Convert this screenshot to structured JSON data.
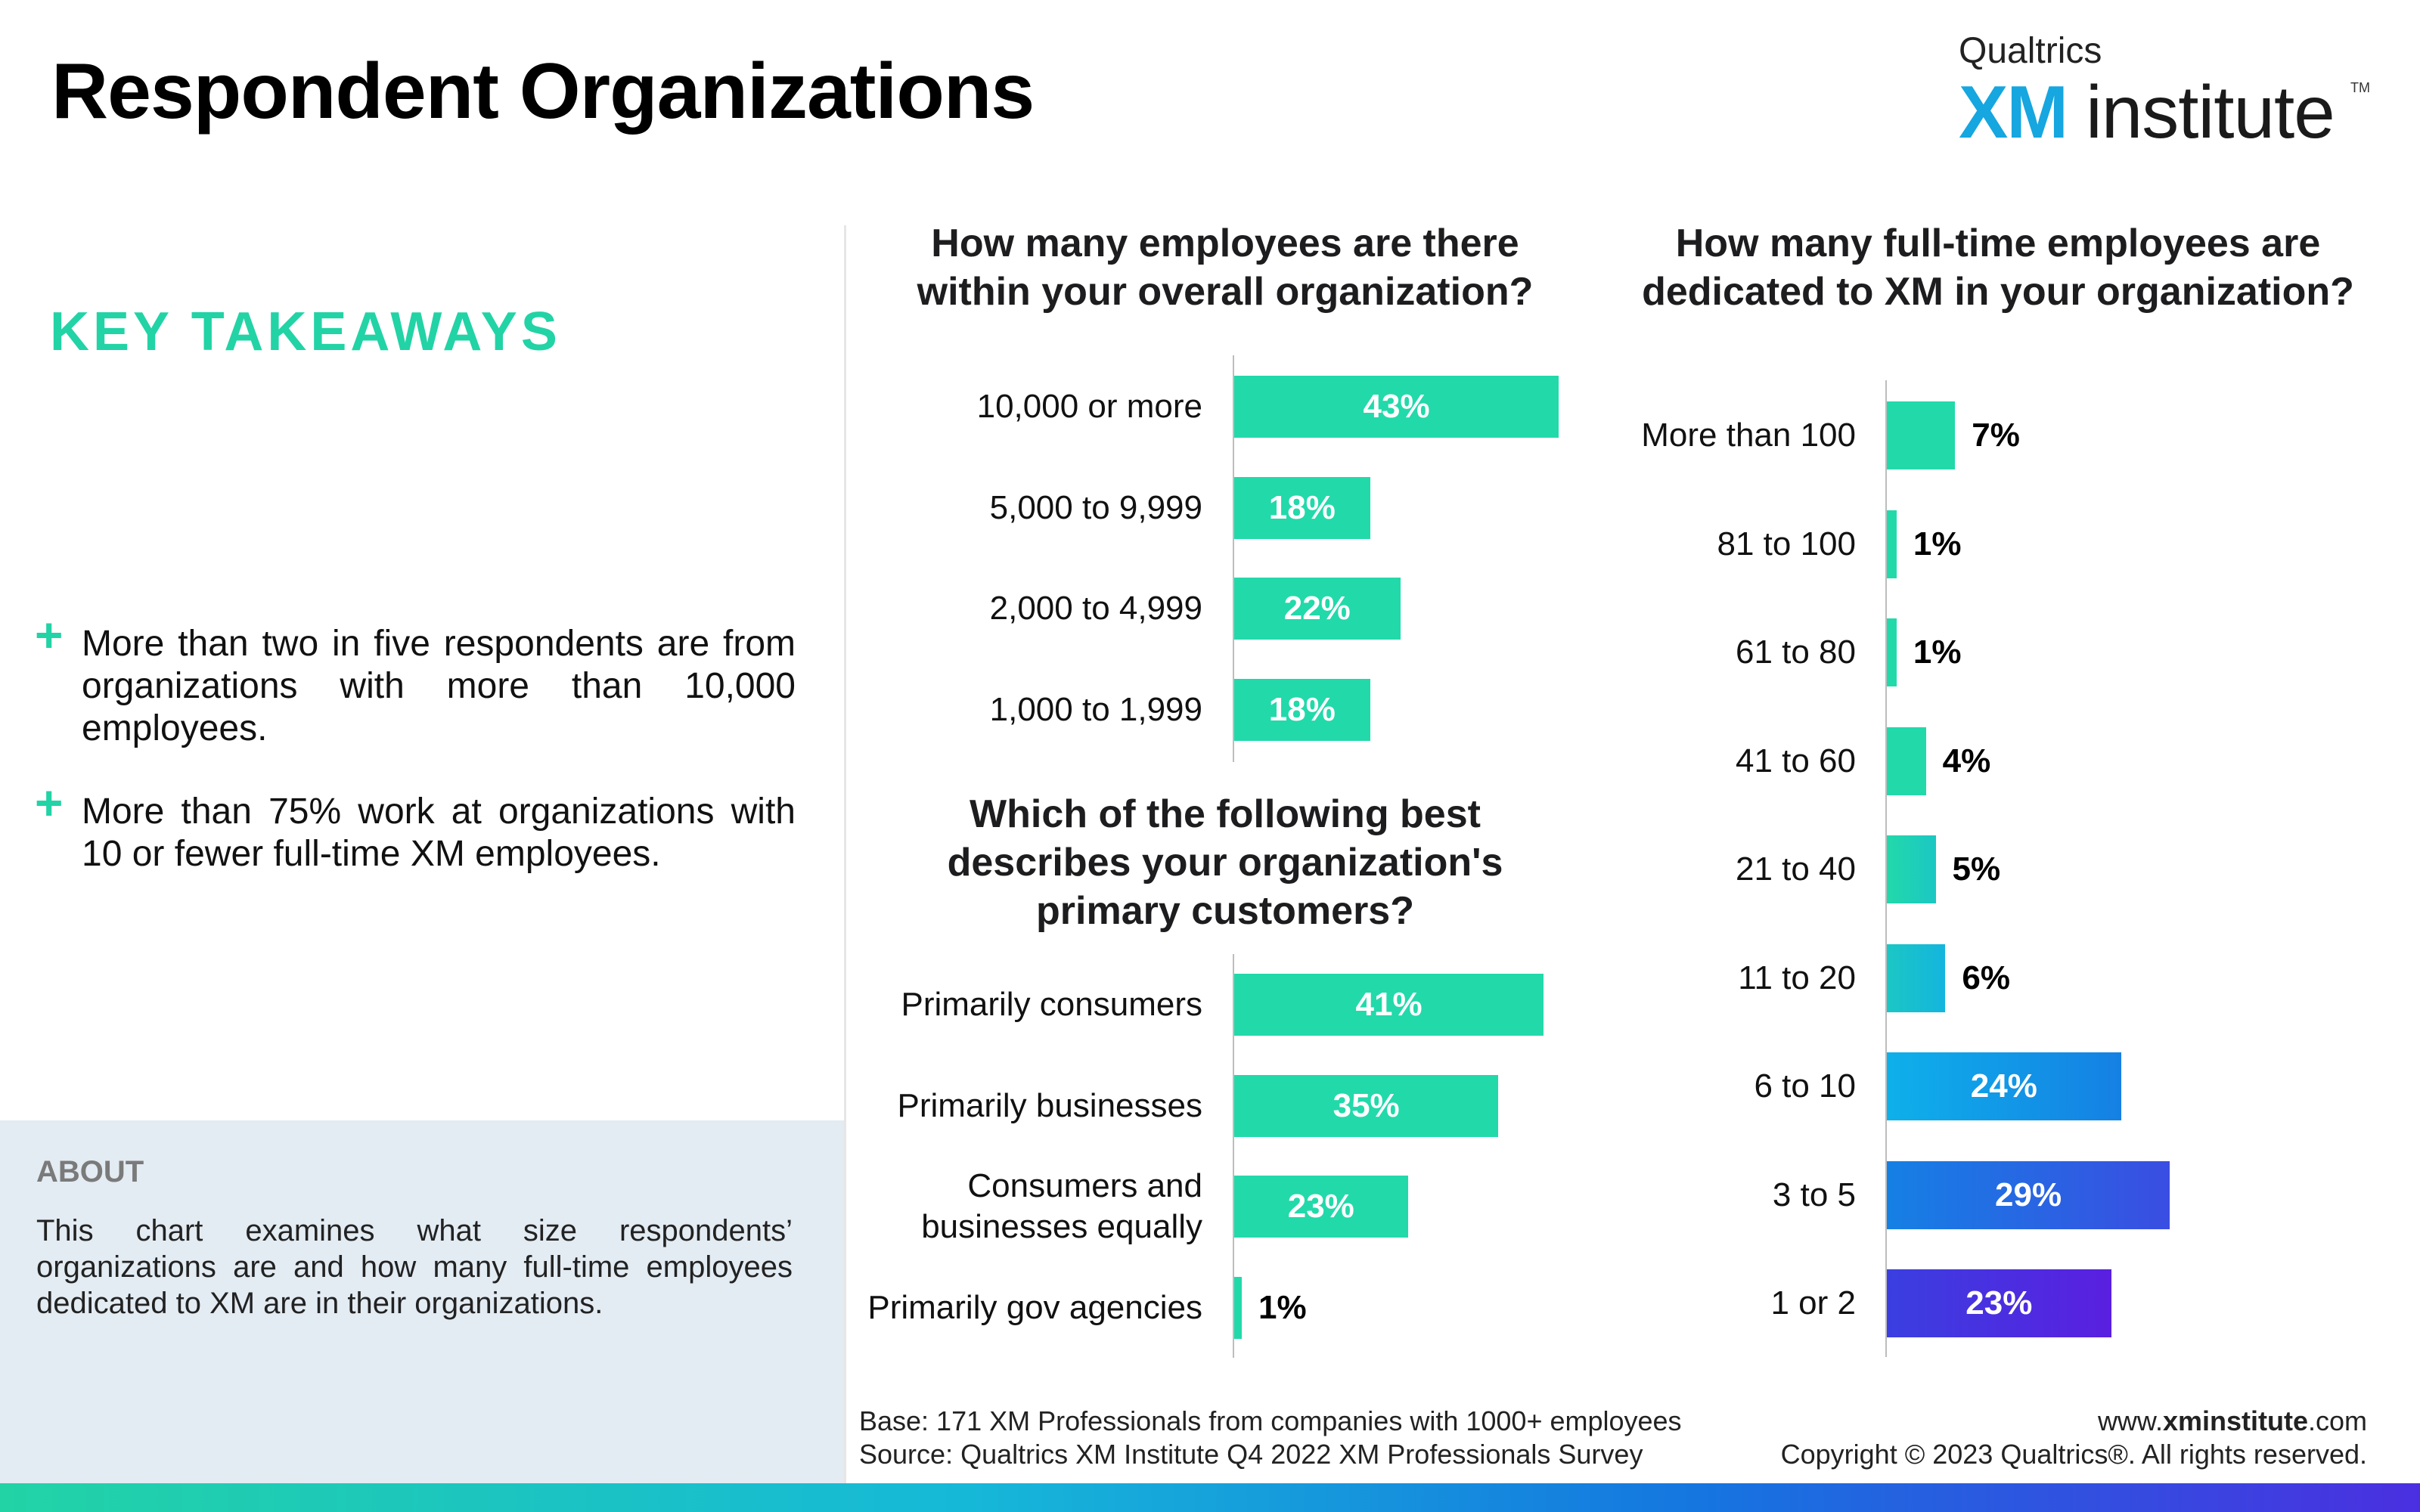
{
  "header": {
    "title": "Respondent Organizations",
    "logo_brand": "Qualtrics",
    "logo_xm": "XM",
    "logo_institute": "institute",
    "logo_tm": "TM"
  },
  "takeaways": {
    "heading": "KEY TAKEAWAYS",
    "items": [
      "More than two in five respondents are from organizations with more than 10,000 employees.",
      "More than 75% work at organizations with 10 or fewer full-time XM employees."
    ]
  },
  "about": {
    "heading": "ABOUT",
    "text": "This chart examines what size respondents’ organizations are and how many full-time employees dedicated to XM are in their organizations."
  },
  "footer": {
    "base": "Base: 171 XM Professionals from companies with 1000+ employees",
    "source": "Source: Qualtrics XM Institute Q4 2022 XM Professionals Survey",
    "url_prefix": "www.",
    "url_bold": "xminstitute",
    "url_suffix": ".com",
    "copyright": "Copyright © 2023 Qualtrics®. All rights reserved."
  },
  "colors": {
    "accent": "#22d3a6",
    "bar_green": "#22d9aa",
    "grad_blue": "#0aa2e8",
    "grad_purple": "#5a1fe0"
  },
  "chart_data": [
    {
      "type": "bar",
      "orientation": "horizontal",
      "title": "How many employees are there within your overall organization?",
      "categories": [
        "10,000 or more",
        "5,000 to 9,999",
        "2,000 to 4,999",
        "1,000 to 1,999"
      ],
      "values": [
        43,
        18,
        22,
        18
      ],
      "labels": [
        "43%",
        "18%",
        "22%",
        "18%"
      ],
      "unit": "%"
    },
    {
      "type": "bar",
      "orientation": "horizontal",
      "title": "Which of the following best describes your organization's primary customers?",
      "categories": [
        "Primarily consumers",
        "Primarily businesses",
        "Consumers and businesses equally",
        "Primarily gov agencies"
      ],
      "values": [
        41,
        35,
        23,
        1
      ],
      "labels": [
        "41%",
        "35%",
        "23%",
        "1%"
      ],
      "unit": "%"
    },
    {
      "type": "bar",
      "orientation": "horizontal",
      "title": "How many full-time employees are dedicated to XM in your organization?",
      "categories": [
        "More than 100",
        "81 to 100",
        "61 to 80",
        "41 to 60",
        "21 to 40",
        "11 to 20",
        "6 to 10",
        "3 to 5",
        "1 or 2"
      ],
      "values": [
        7,
        1,
        1,
        4,
        5,
        6,
        24,
        29,
        23
      ],
      "labels": [
        "7%",
        "1%",
        "1%",
        "4%",
        "5%",
        "6%",
        "24%",
        "29%",
        "23%"
      ],
      "unit": "%"
    }
  ]
}
